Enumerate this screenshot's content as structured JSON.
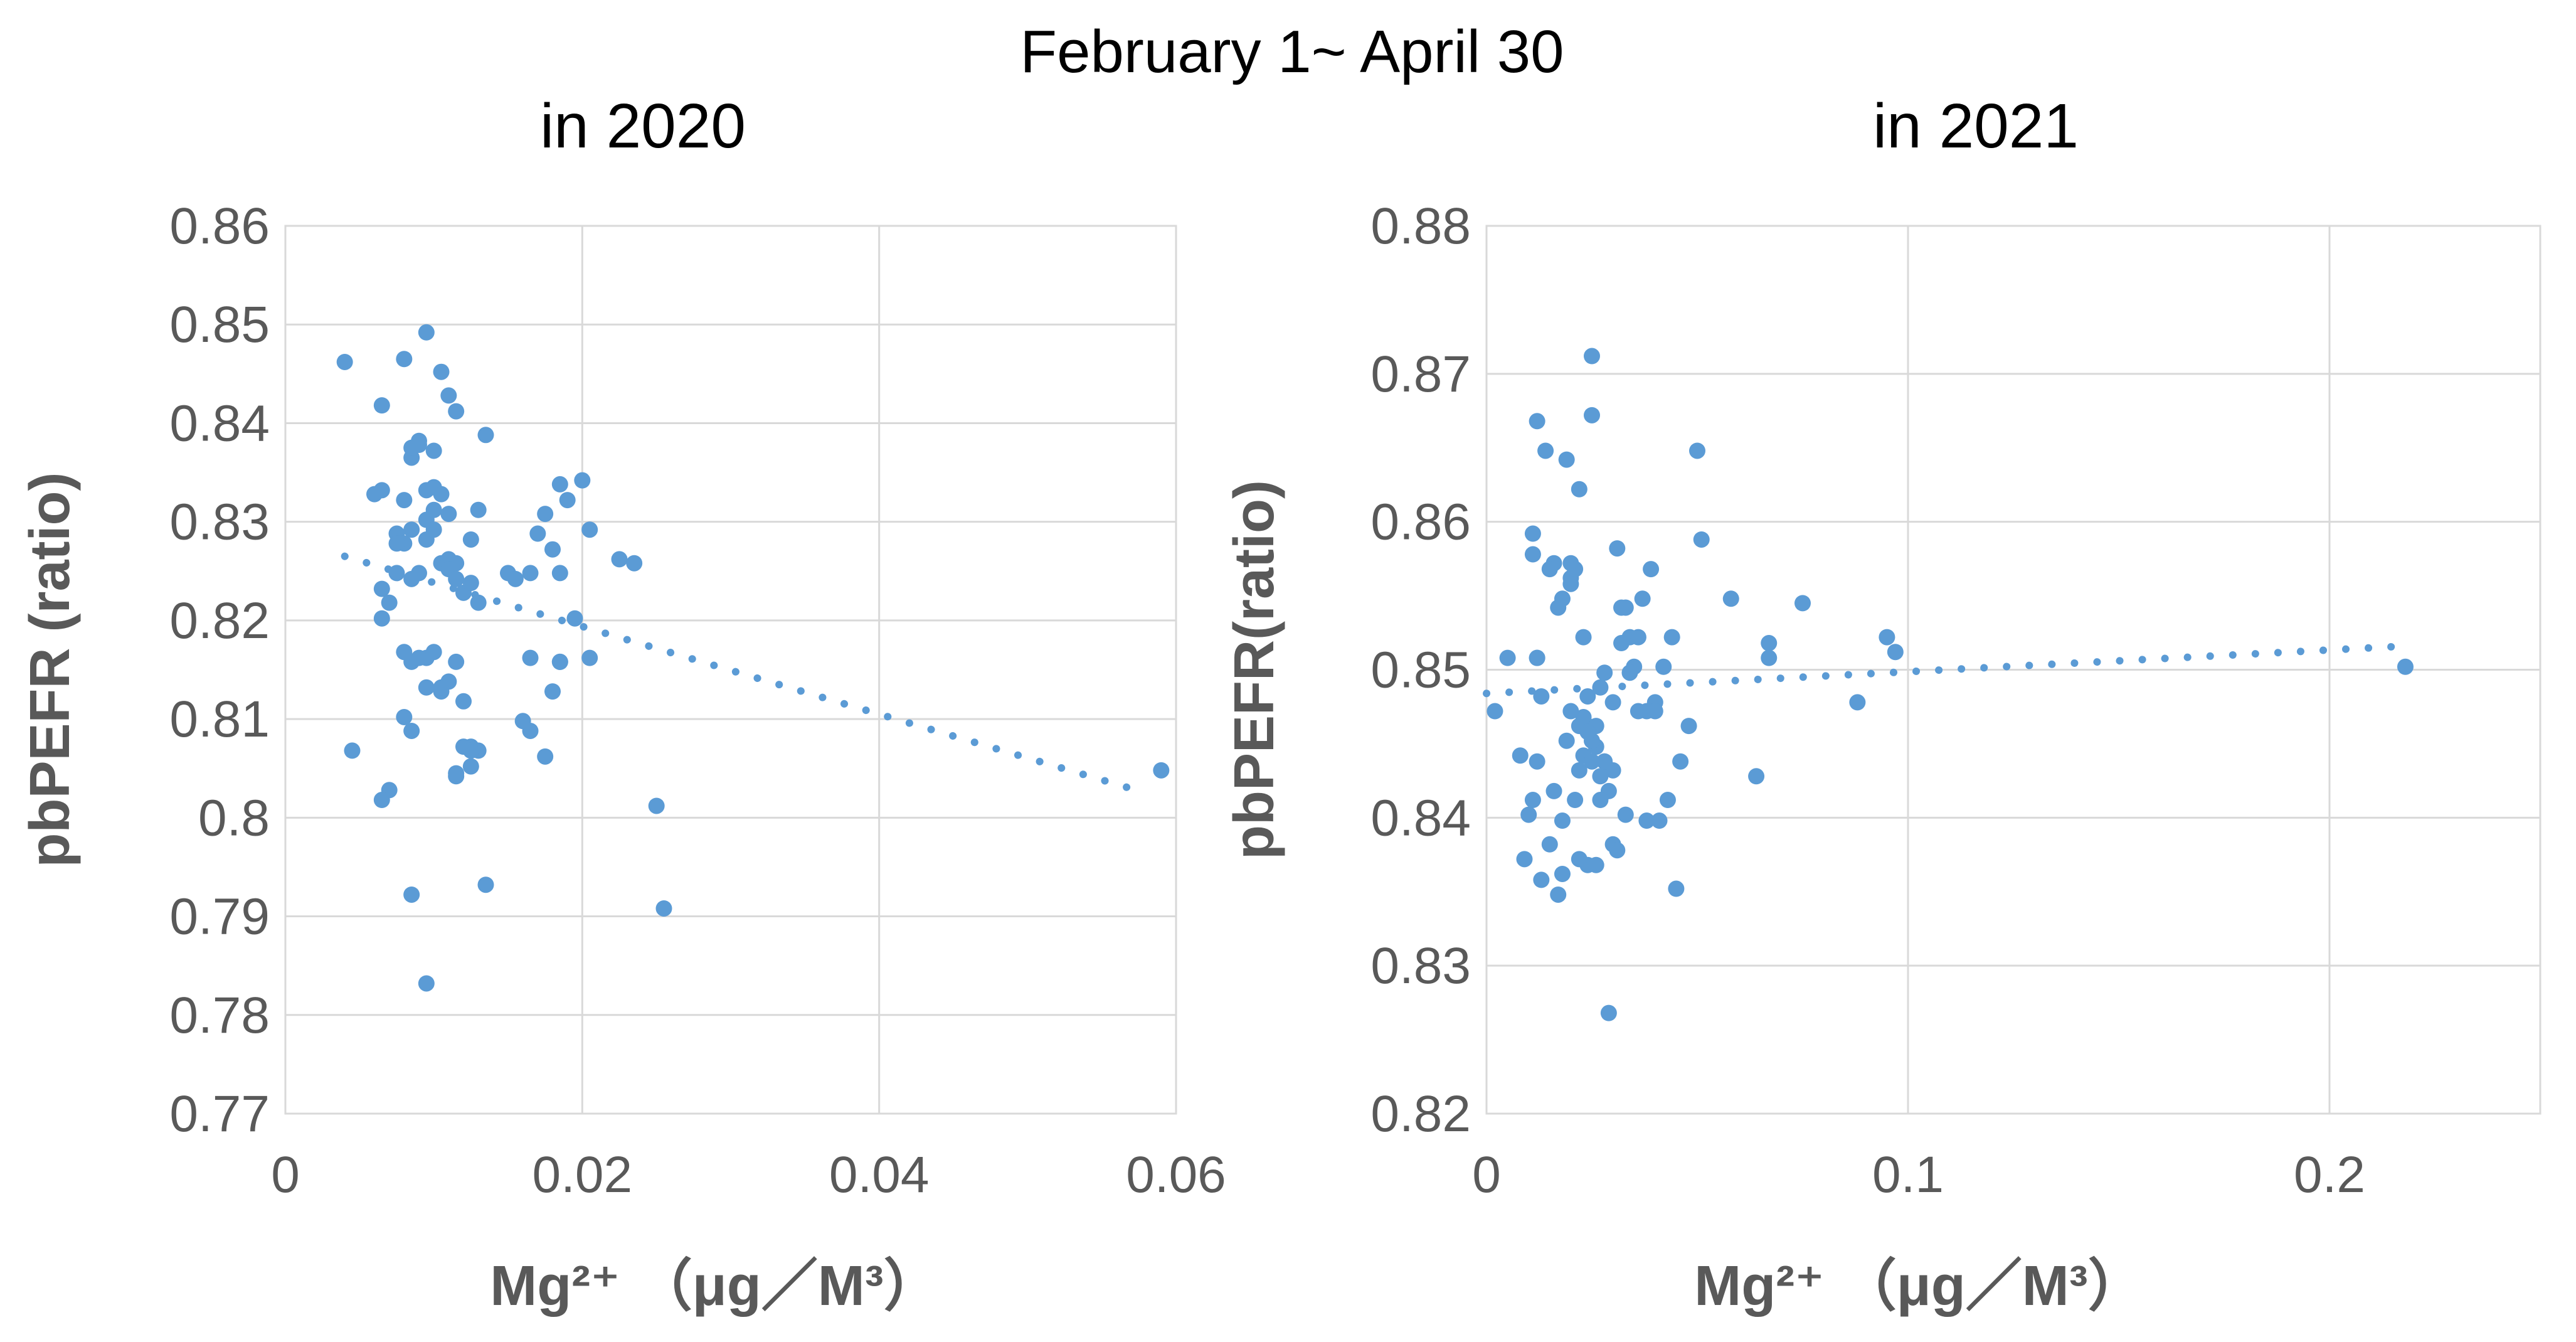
{
  "figure": {
    "title": "February 1~ April 30"
  },
  "chart_data": [
    {
      "type": "scatter",
      "title": "in 2020",
      "xlabel": "Mg²⁺ （μg／M³）",
      "ylabel": "pbPEFR (ratio)",
      "xlim": [
        0,
        0.06
      ],
      "ylim": [
        0.77,
        0.86
      ],
      "xticks": [
        0,
        0.02,
        0.04,
        0.06
      ],
      "xtick_labels": [
        "0",
        "0.02",
        "0.04",
        "0.06"
      ],
      "yticks": [
        0.77,
        0.78,
        0.79,
        0.8,
        0.81,
        0.82,
        0.83,
        0.84,
        0.85,
        0.86
      ],
      "ytick_labels": [
        "0.77",
        "0.78",
        "0.79",
        "0.8",
        "0.81",
        "0.82",
        "0.83",
        "0.84",
        "0.85",
        "0.86"
      ],
      "grid": true,
      "point_color": "#5B9BD5",
      "trendline": {
        "type": "linear",
        "style": "dotted",
        "x": [
          0.004,
          0.058
        ],
        "y": [
          0.8265,
          0.8025
        ]
      },
      "x": [
        0.004,
        0.0045,
        0.0065,
        0.007,
        0.0065,
        0.0075,
        0.008,
        0.0085,
        0.009,
        0.0095,
        0.01,
        0.0105,
        0.011,
        0.0115,
        0.0085,
        0.009,
        0.0095,
        0.01,
        0.0105,
        0.011,
        0.0075,
        0.008,
        0.0085,
        0.0095,
        0.01,
        0.0105,
        0.011,
        0.0115,
        0.012,
        0.0125,
        0.013,
        0.0065,
        0.007,
        0.0075,
        0.008,
        0.0085,
        0.009,
        0.0095,
        0.01,
        0.0105,
        0.011,
        0.0115,
        0.012,
        0.0125,
        0.013,
        0.0135,
        0.006,
        0.0065,
        0.008,
        0.0085,
        0.009,
        0.0095,
        0.01,
        0.011,
        0.0115,
        0.0125,
        0.013,
        0.008,
        0.0085,
        0.0095,
        0.0105,
        0.0115,
        0.0125,
        0.015,
        0.0155,
        0.0165,
        0.017,
        0.0175,
        0.018,
        0.0185,
        0.019,
        0.02,
        0.0205,
        0.0185,
        0.0195,
        0.0165,
        0.0175,
        0.0185,
        0.0205,
        0.0225,
        0.0235,
        0.016,
        0.0165,
        0.018,
        0.0185,
        0.0115,
        0.012,
        0.0125,
        0.0065,
        0.0085,
        0.0135,
        0.0095,
        0.025,
        0.0255,
        0.059
      ],
      "y": [
        0.8462,
        0.8068,
        0.8418,
        0.8028,
        0.8202,
        0.8248,
        0.8465,
        0.8365,
        0.8382,
        0.8492,
        0.8372,
        0.8452,
        0.8428,
        0.8412,
        0.8375,
        0.8378,
        0.8332,
        0.8335,
        0.8328,
        0.8308,
        0.8288,
        0.8278,
        0.8292,
        0.8302,
        0.8312,
        0.8258,
        0.8262,
        0.8258,
        0.8228,
        0.8238,
        0.8312,
        0.8232,
        0.8218,
        0.8278,
        0.8168,
        0.8158,
        0.8162,
        0.8162,
        0.8168,
        0.8128,
        0.8138,
        0.8158,
        0.8118,
        0.8072,
        0.8068,
        0.8388,
        0.8328,
        0.8332,
        0.8322,
        0.8242,
        0.8248,
        0.8282,
        0.8292,
        0.8252,
        0.8242,
        0.8282,
        0.8218,
        0.8102,
        0.8088,
        0.8132,
        0.8132,
        0.8042,
        0.8052,
        0.8248,
        0.8242,
        0.8248,
        0.8288,
        0.8308,
        0.8272,
        0.8338,
        0.8322,
        0.8342,
        0.8292,
        0.8248,
        0.8202,
        0.8088,
        0.8062,
        0.8158,
        0.8162,
        0.8262,
        0.8258,
        0.8098,
        0.8162,
        0.8128,
        0.8158,
        0.8045,
        0.8072,
        0.8068,
        0.8018,
        0.7922,
        0.7932,
        0.7832,
        0.8012,
        0.7908,
        0.8048
      ]
    },
    {
      "type": "scatter",
      "title": "in 2021",
      "xlabel": "Mg²⁺ （μg／M³）",
      "ylabel": "pbPEFR(ratio)",
      "xlim": [
        0,
        0.25
      ],
      "ylim": [
        0.82,
        0.88
      ],
      "xticks": [
        0,
        0.1,
        0.2
      ],
      "xtick_labels": [
        "0",
        "0.1",
        "0.2"
      ],
      "yticks": [
        0.82,
        0.83,
        0.84,
        0.85,
        0.86,
        0.87,
        0.88
      ],
      "ytick_labels": [
        "0.82",
        "0.83",
        "0.84",
        "0.85",
        "0.86",
        "0.87",
        "0.88"
      ],
      "grid": true,
      "point_color": "#5B9BD5",
      "trendline": {
        "type": "linear",
        "style": "dotted",
        "x": [
          0.0,
          0.218
        ],
        "y": [
          0.8484,
          0.8516
        ]
      },
      "x": [
        0.002,
        0.005,
        0.008,
        0.009,
        0.01,
        0.011,
        0.012,
        0.012,
        0.013,
        0.015,
        0.016,
        0.017,
        0.018,
        0.019,
        0.02,
        0.021,
        0.022,
        0.023,
        0.024,
        0.025,
        0.025,
        0.026,
        0.027,
        0.028,
        0.029,
        0.03,
        0.031,
        0.032,
        0.033,
        0.034,
        0.035,
        0.036,
        0.037,
        0.038,
        0.039,
        0.04,
        0.041,
        0.042,
        0.043,
        0.044,
        0.045,
        0.046,
        0.048,
        0.05,
        0.051,
        0.058,
        0.064,
        0.067,
        0.067,
        0.075,
        0.088,
        0.095,
        0.097,
        0.218,
        0.011,
        0.012,
        0.014,
        0.016,
        0.018,
        0.02,
        0.021,
        0.022,
        0.023,
        0.024,
        0.025,
        0.026,
        0.027,
        0.03,
        0.031,
        0.033,
        0.036,
        0.038,
        0.012,
        0.015,
        0.017,
        0.02,
        0.022,
        0.024,
        0.026,
        0.028,
        0.03,
        0.032,
        0.034,
        0.04,
        0.011,
        0.013,
        0.018,
        0.022,
        0.027,
        0.029,
        0.02,
        0.023,
        0.025,
        0.019,
        0.024,
        0.028
      ],
      "y": [
        0.8472,
        0.8508,
        0.8442,
        0.8372,
        0.8402,
        0.8412,
        0.8438,
        0.8668,
        0.8358,
        0.8382,
        0.8418,
        0.8348,
        0.8362,
        0.8642,
        0.8572,
        0.8412,
        0.8622,
        0.8468,
        0.8462,
        0.8712,
        0.8672,
        0.8448,
        0.8488,
        0.8438,
        0.8418,
        0.8382,
        0.8582,
        0.8518,
        0.8402,
        0.8522,
        0.8502,
        0.8472,
        0.8548,
        0.8398,
        0.8568,
        0.8478,
        0.8398,
        0.8502,
        0.8412,
        0.8522,
        0.8352,
        0.8438,
        0.8462,
        0.8648,
        0.8588,
        0.8548,
        0.8428,
        0.8518,
        0.8508,
        0.8545,
        0.8478,
        0.8522,
        0.8512,
        0.8502,
        0.8592,
        0.8508,
        0.8648,
        0.8572,
        0.8548,
        0.8562,
        0.8568,
        0.8432,
        0.8442,
        0.8368,
        0.8452,
        0.8462,
        0.8412,
        0.8432,
        0.8378,
        0.8542,
        0.8522,
        0.8472,
        0.8508,
        0.8568,
        0.8542,
        0.8558,
        0.8462,
        0.8482,
        0.8368,
        0.8498,
        0.8478,
        0.8542,
        0.8498,
        0.8472,
        0.8578,
        0.8482,
        0.8398,
        0.8372,
        0.8428,
        0.8268,
        0.8472,
        0.8522,
        0.8438,
        0.8452,
        0.8458,
        0.8438
      ]
    }
  ]
}
